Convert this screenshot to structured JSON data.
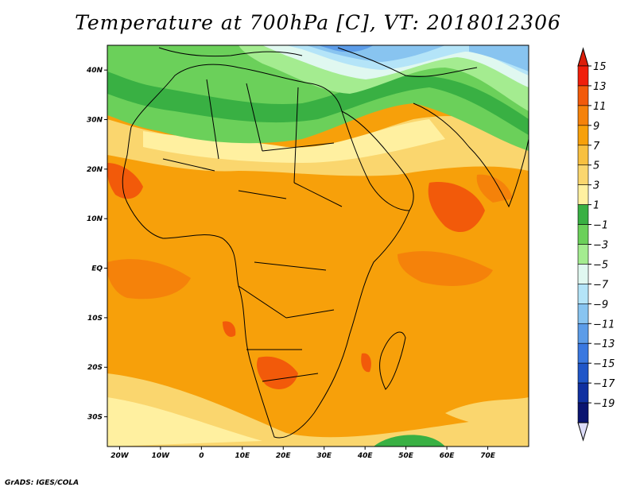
{
  "title": "Temperature at 700hPa [C], VT: 2018012306",
  "credit": "GrADS: IGES/COLA",
  "map": {
    "lat_range": [
      -36,
      45
    ],
    "lon_range": [
      -23,
      80
    ],
    "lat_ticks": [
      {
        "value": 40,
        "label": "40N"
      },
      {
        "value": 30,
        "label": "30N"
      },
      {
        "value": 20,
        "label": "20N"
      },
      {
        "value": 10,
        "label": "10N"
      },
      {
        "value": 0,
        "label": "EQ"
      },
      {
        "value": -10,
        "label": "10S"
      },
      {
        "value": -20,
        "label": "20S"
      },
      {
        "value": -30,
        "label": "30S"
      }
    ],
    "lon_ticks": [
      {
        "value": -20,
        "label": "20W"
      },
      {
        "value": -10,
        "label": "10W"
      },
      {
        "value": 0,
        "label": "0"
      },
      {
        "value": 10,
        "label": "10E"
      },
      {
        "value": 20,
        "label": "20E"
      },
      {
        "value": 30,
        "label": "30E"
      },
      {
        "value": 40,
        "label": "40E"
      },
      {
        "value": 50,
        "label": "50E"
      },
      {
        "value": 60,
        "label": "60E"
      },
      {
        "value": 70,
        "label": "70E"
      }
    ]
  },
  "colorbar": {
    "levels": [
      15,
      13,
      11,
      9,
      7,
      5,
      3,
      1,
      -1,
      -3,
      -5,
      -7,
      -9,
      -11,
      -13,
      -15,
      -17,
      -19
    ],
    "colors_top_to_bottom": [
      "#f01e0a",
      "#f25a0a",
      "#f5820a",
      "#f7a00a",
      "#f8c040",
      "#fad66e",
      "#fff0a0",
      "#39b043",
      "#6bd05a",
      "#a4ec90",
      "#e0f8f0",
      "#b4e4f8",
      "#88c4f0",
      "#5c9ce8",
      "#3a78e0",
      "#2056c8",
      "#1030a0",
      "#0a1470"
    ],
    "top_arrow_color": "#dc1e0a",
    "bottom_arrow_color": "#dcdcf8"
  }
}
